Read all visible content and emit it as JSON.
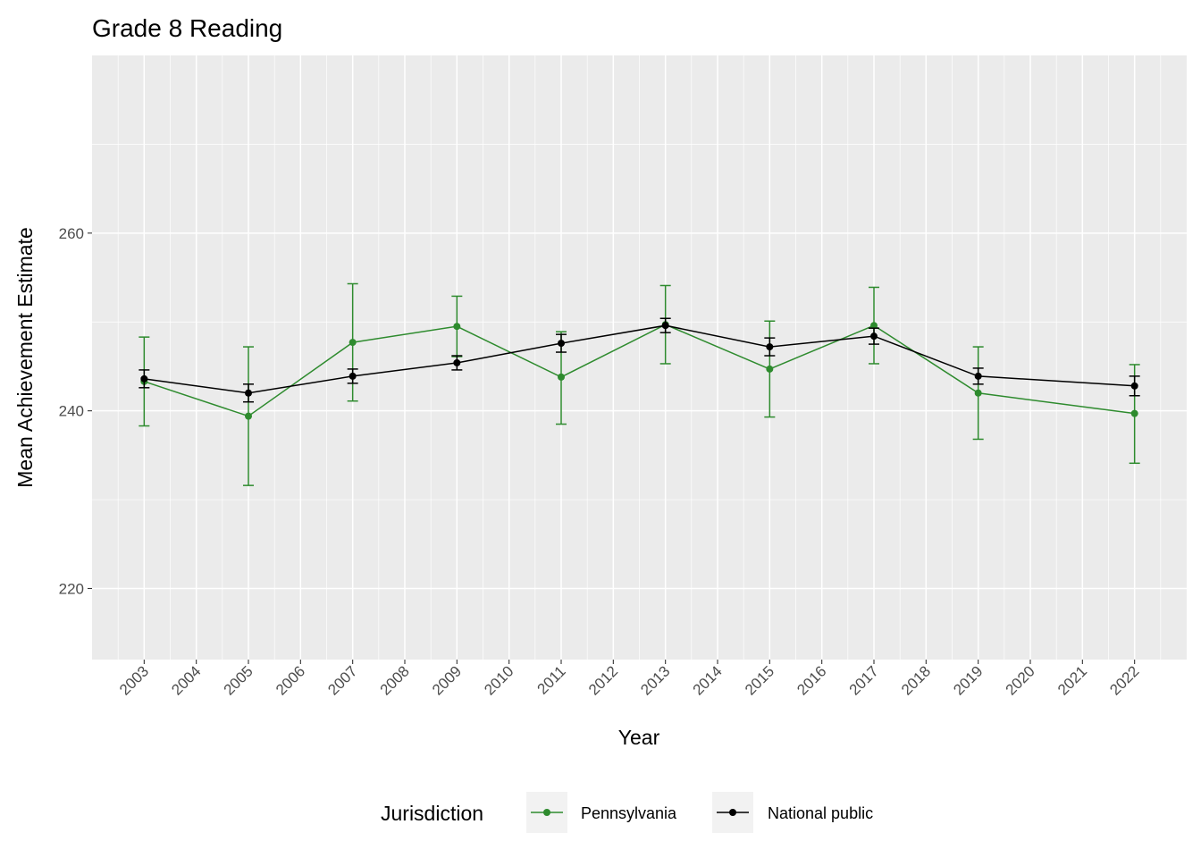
{
  "chart_data": {
    "type": "line",
    "title": "Grade 8 Reading",
    "xlabel": "Year",
    "ylabel": "Mean Achievement Estimate",
    "x_ticks": [
      "2003",
      "2004",
      "2005",
      "2006",
      "2007",
      "2008",
      "2009",
      "2010",
      "2011",
      "2012",
      "2013",
      "2014",
      "2015",
      "2016",
      "2017",
      "2018",
      "2019",
      "2020",
      "2021",
      "2022"
    ],
    "y_ticks": [
      220,
      240,
      260
    ],
    "ylim": [
      212,
      280
    ],
    "xlim": [
      2002,
      2023
    ],
    "grid": true,
    "legend": {
      "title": "Jurisdiction",
      "position": "bottom"
    },
    "series": [
      {
        "name": "Pennsylvania",
        "color": "#2e8b2e",
        "x": [
          2003,
          2005,
          2007,
          2009,
          2011,
          2013,
          2015,
          2017,
          2019,
          2022
        ],
        "values": [
          243.3,
          239.4,
          247.7,
          249.5,
          243.8,
          249.7,
          244.7,
          249.6,
          242.0,
          239.7
        ],
        "lower": [
          238.3,
          231.6,
          241.1,
          246.1,
          238.5,
          245.3,
          239.3,
          245.3,
          236.8,
          234.1
        ],
        "upper": [
          248.3,
          247.2,
          254.3,
          252.9,
          248.9,
          254.1,
          250.1,
          253.9,
          247.2,
          245.2
        ]
      },
      {
        "name": "National public",
        "color": "#000000",
        "x": [
          2003,
          2005,
          2007,
          2009,
          2011,
          2013,
          2015,
          2017,
          2019,
          2022
        ],
        "values": [
          243.6,
          242.0,
          243.9,
          245.4,
          247.6,
          249.6,
          247.2,
          248.4,
          243.9,
          242.8
        ],
        "lower": [
          242.6,
          241.0,
          243.1,
          244.6,
          246.6,
          248.8,
          246.2,
          247.5,
          243.0,
          241.7
        ],
        "upper": [
          244.6,
          243.0,
          244.7,
          246.2,
          248.6,
          250.4,
          248.2,
          249.3,
          244.8,
          243.9
        ]
      }
    ]
  }
}
